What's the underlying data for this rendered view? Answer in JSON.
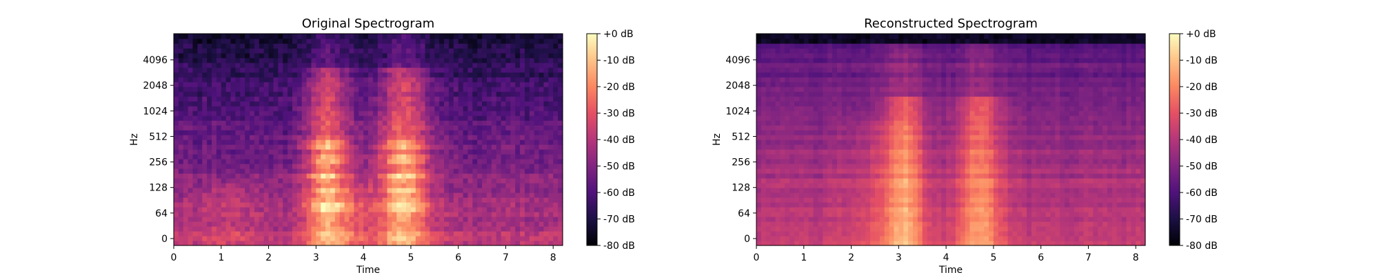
{
  "chart_data": [
    {
      "type": "heatmap",
      "title": "Original Spectrogram",
      "xlabel": "Time",
      "ylabel": "Hz",
      "xlim": [
        0,
        8.2
      ],
      "x_ticks": [
        0,
        1,
        2,
        3,
        4,
        5,
        6,
        7,
        8
      ],
      "y_ticks": [
        "0",
        "64",
        "128",
        "256",
        "512",
        "1024",
        "2048",
        "4096"
      ],
      "colorbar_ticks": [
        "+0 dB",
        "-10 dB",
        "-20 dB",
        "-30 dB",
        "-40 dB",
        "-50 dB",
        "-60 dB",
        "-70 dB",
        "-80 dB"
      ],
      "colorbar_range_db": [
        -80,
        0
      ],
      "colormap": "magma"
    },
    {
      "type": "heatmap",
      "title": "Reconstructed Spectrogram",
      "xlabel": "Time",
      "ylabel": "Hz",
      "xlim": [
        0,
        8.2
      ],
      "x_ticks": [
        0,
        1,
        2,
        3,
        4,
        5,
        6,
        7,
        8
      ],
      "y_ticks": [
        "0",
        "64",
        "128",
        "256",
        "512",
        "1024",
        "2048",
        "4096"
      ],
      "colorbar_ticks": [
        "+0 dB",
        "-10 dB",
        "-20 dB",
        "-30 dB",
        "-40 dB",
        "-50 dB",
        "-60 dB",
        "-70 dB",
        "-80 dB"
      ],
      "colorbar_range_db": [
        -80,
        0
      ],
      "colormap": "magma"
    }
  ],
  "colors": {
    "magma_stops": [
      "#000004",
      "#1c1044",
      "#4f127b",
      "#812581",
      "#b5367a",
      "#e55064",
      "#fb8761",
      "#fec287",
      "#fcfdbf"
    ]
  }
}
